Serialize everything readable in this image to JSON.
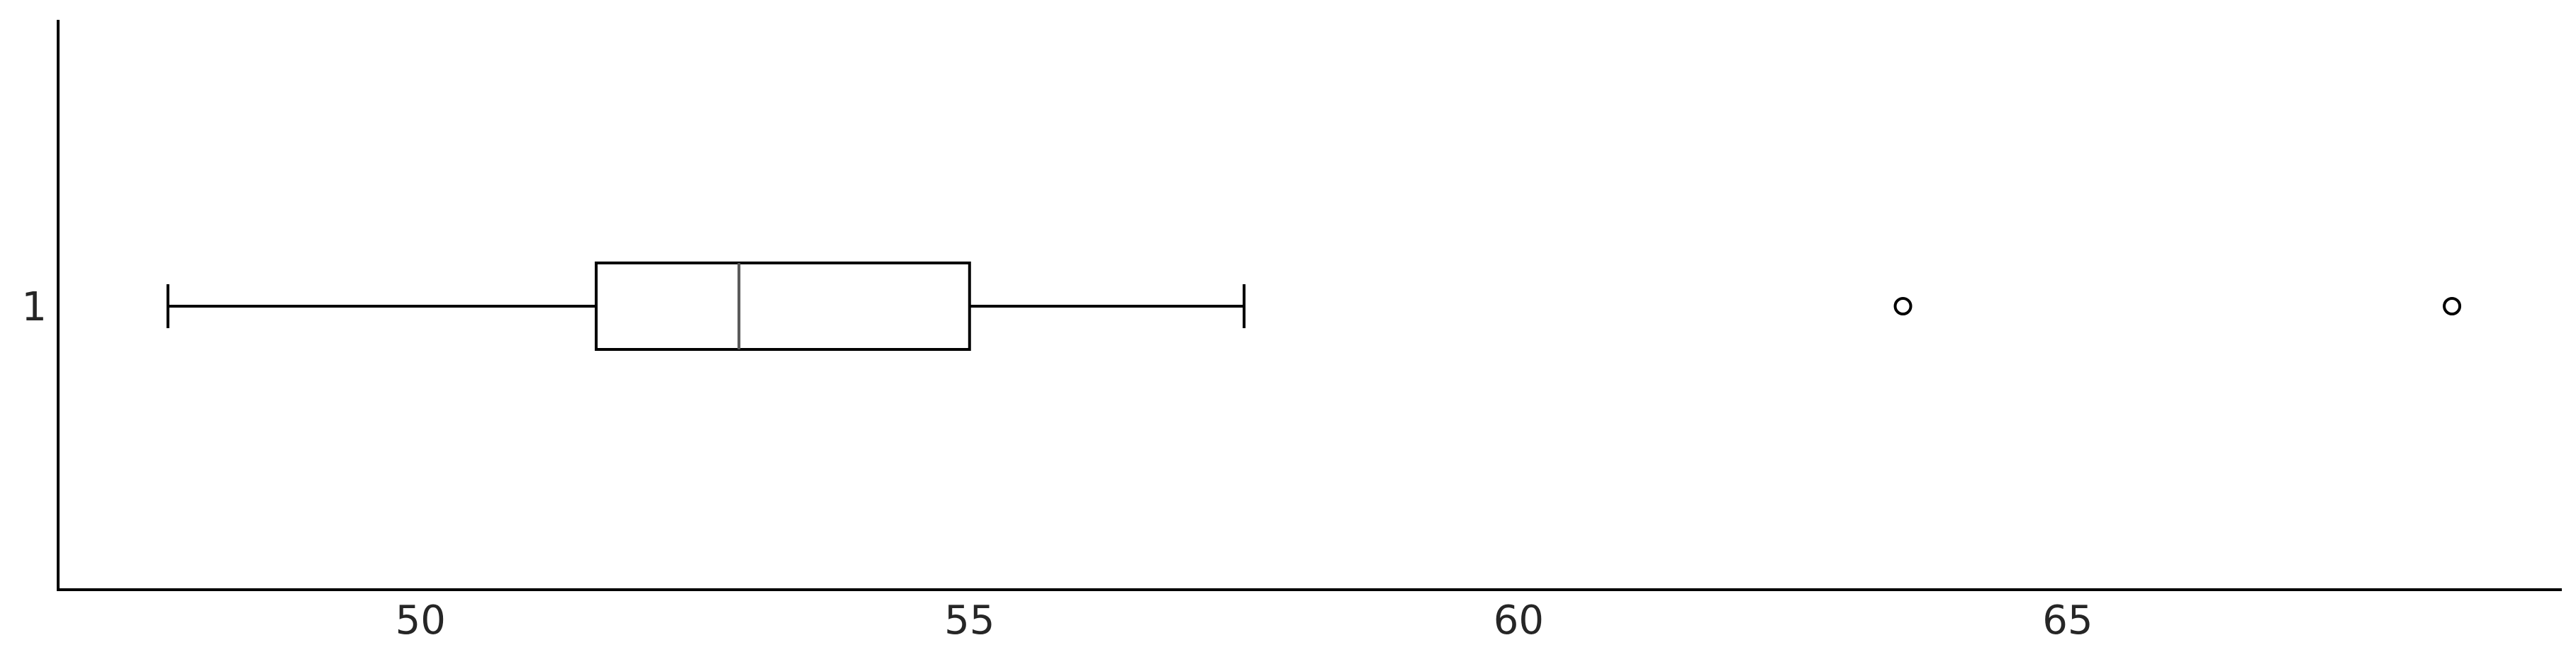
{
  "chart_data": {
    "type": "boxplot",
    "orientation": "horizontal",
    "categories": [
      "1"
    ],
    "boxes": [
      {
        "category": "1",
        "whisker_low": 47.7,
        "q1": 51.6,
        "median": 52.9,
        "q3": 55.0,
        "whisker_high": 57.5,
        "outliers": [
          63.5,
          68.5
        ]
      }
    ],
    "xlim": [
      46.7,
      69.5
    ],
    "xticks": [
      50,
      55,
      60,
      65
    ],
    "title": "",
    "xlabel": "",
    "ylabel": "",
    "grid": false,
    "colors": {
      "axis": "#000000",
      "box": "#000000",
      "median": "#555555",
      "text": "#262626"
    }
  }
}
